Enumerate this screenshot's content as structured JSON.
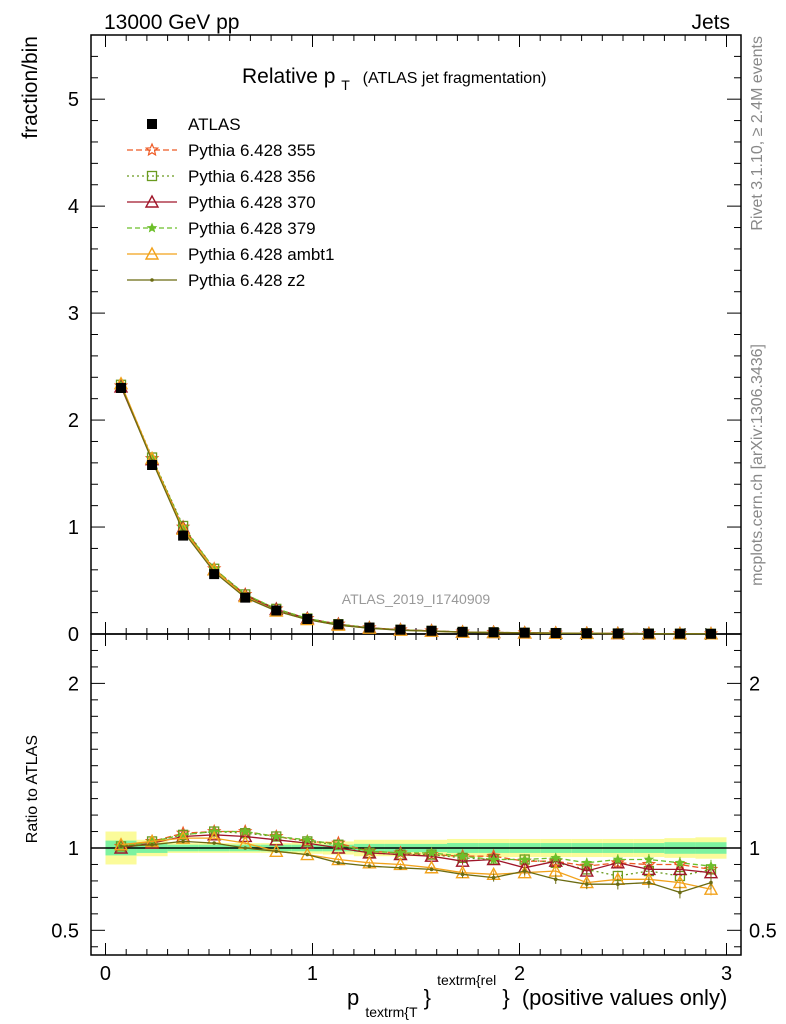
{
  "header": {
    "left": "13000 GeV pp",
    "right": "Jets"
  },
  "title": {
    "main": "Relative p",
    "sub": "T",
    "suffix": "(ATLAS jet fragmentation)"
  },
  "side_labels": {
    "rivet": "Rivet 3.1.10, ≥ 2.4M events",
    "mcplots": "mcplots.cern.ch [arXiv:1306.3436]"
  },
  "analysis_label": "ATLAS_2019_I1740909",
  "y_label_main": "fraction/bin",
  "y_label_ratio": "Ratio to ATLAS",
  "x_label": {
    "p": "p",
    "sub": "textrm{T",
    "brace1": "}",
    "sup": "textrm{rel",
    "brace2": "}",
    "tail": "(positive values only)"
  },
  "colors": {
    "ATLAS": "#000000",
    "p355": "#ee5a24",
    "p356": "#6a9a1f",
    "p370": "#a0162a",
    "p379": "#6cbf2a",
    "ambt1": "#f2a21b",
    "z2": "#6b6b12",
    "band_inner": "#7df2a0",
    "band_outer": "#fbfb9a"
  },
  "chart_data": [
    {
      "type": "line",
      "panel": "main",
      "xlim": [
        -0.07,
        3.07
      ],
      "ylim": [
        0,
        5.6
      ],
      "yticks": [
        0,
        1,
        2,
        3,
        4,
        5
      ],
      "ytick_labels": [
        "0",
        "1",
        "2",
        "3",
        "4",
        "5"
      ],
      "x": [
        0.075,
        0.225,
        0.375,
        0.525,
        0.675,
        0.825,
        0.975,
        1.125,
        1.275,
        1.425,
        1.575,
        1.725,
        1.875,
        2.025,
        2.175,
        2.325,
        2.475,
        2.625,
        2.775,
        2.925
      ],
      "series": [
        {
          "name": "ATLAS",
          "key": "ATLAS",
          "marker": "square",
          "dash": "none",
          "values": [
            2.3,
            1.58,
            0.92,
            0.56,
            0.34,
            0.22,
            0.14,
            0.09,
            0.06,
            0.04,
            0.03,
            0.02,
            0.016,
            0.012,
            0.009,
            0.007,
            0.005,
            0.004,
            0.003,
            0.002
          ]
        },
        {
          "name": "Pythia 6.428 355",
          "key": "p355",
          "marker": "star",
          "dash": "6,3",
          "values": [
            2.32,
            1.64,
            1.0,
            0.61,
            0.37,
            0.235,
            0.145,
            0.093,
            0.058,
            0.039,
            0.029,
            0.019,
            0.015,
            0.011,
            0.0085,
            0.0063,
            0.0046,
            0.0036,
            0.0027,
            0.0017
          ]
        },
        {
          "name": "Pythia 6.428 356",
          "key": "p356",
          "marker": "square-open",
          "dash": "2,3",
          "values": [
            2.33,
            1.65,
            1.01,
            0.61,
            0.37,
            0.235,
            0.145,
            0.092,
            0.058,
            0.039,
            0.029,
            0.019,
            0.015,
            0.011,
            0.0083,
            0.006,
            0.0042,
            0.0035,
            0.0025,
            0.0018
          ]
        },
        {
          "name": "Pythia 6.428 370",
          "key": "p370",
          "marker": "triangle-open",
          "dash": "none",
          "values": [
            2.31,
            1.63,
            0.99,
            0.6,
            0.36,
            0.23,
            0.145,
            0.089,
            0.058,
            0.039,
            0.029,
            0.018,
            0.015,
            0.0105,
            0.0082,
            0.006,
            0.0045,
            0.0035,
            0.0026,
            0.0017
          ]
        },
        {
          "name": "Pythia 6.428 379",
          "key": "p379",
          "marker": "star-small",
          "dash": "5,3",
          "values": [
            2.32,
            1.64,
            1.0,
            0.61,
            0.37,
            0.235,
            0.146,
            0.092,
            0.058,
            0.039,
            0.029,
            0.019,
            0.015,
            0.011,
            0.0084,
            0.0063,
            0.0046,
            0.0037,
            0.0026,
            0.0018
          ]
        },
        {
          "name": "Pythia 6.428 ambt1",
          "key": "ambt1",
          "marker": "triangle-open",
          "dash": "none",
          "values": [
            2.34,
            1.64,
            0.98,
            0.6,
            0.35,
            0.215,
            0.135,
            0.083,
            0.054,
            0.036,
            0.026,
            0.017,
            0.013,
            0.01,
            0.0077,
            0.0055,
            0.004,
            0.0032,
            0.0023,
            0.0015
          ]
        },
        {
          "name": "Pythia 6.428 z2",
          "key": "z2",
          "marker": "dot",
          "dash": "none",
          "values": [
            2.32,
            1.62,
            0.96,
            0.58,
            0.34,
            0.215,
            0.135,
            0.082,
            0.054,
            0.035,
            0.026,
            0.017,
            0.013,
            0.01,
            0.0073,
            0.0055,
            0.0039,
            0.0032,
            0.0022,
            0.0016
          ]
        }
      ]
    },
    {
      "type": "line",
      "panel": "ratio",
      "xlim": [
        -0.07,
        3.07
      ],
      "ylim": [
        0.35,
        2.3
      ],
      "yticks": [
        0.5,
        1,
        2
      ],
      "ytick_labels": [
        "0.5",
        "1",
        "2"
      ],
      "xticks": [
        0,
        1,
        2,
        3
      ],
      "xtick_labels": [
        "0",
        "1",
        "2",
        "3"
      ],
      "x": [
        0.075,
        0.225,
        0.375,
        0.525,
        0.675,
        0.825,
        0.975,
        1.125,
        1.275,
        1.425,
        1.575,
        1.725,
        1.875,
        2.025,
        2.175,
        2.325,
        2.475,
        2.625,
        2.775,
        2.925
      ],
      "bands": {
        "inner": [
          0.045,
          0.03,
          0.02,
          0.02,
          0.02,
          0.02,
          0.02,
          0.02,
          0.025,
          0.025,
          0.025,
          0.03,
          0.03,
          0.03,
          0.03,
          0.03,
          0.03,
          0.03,
          0.035,
          0.035
        ],
        "outer": [
          0.1,
          0.05,
          0.03,
          0.03,
          0.03,
          0.03,
          0.035,
          0.04,
          0.05,
          0.05,
          0.05,
          0.055,
          0.055,
          0.055,
          0.055,
          0.055,
          0.055,
          0.055,
          0.06,
          0.065
        ]
      },
      "series": [
        {
          "key": "p355",
          "marker": "star",
          "dash": "6,3",
          "values": [
            1.01,
            1.04,
            1.09,
            1.1,
            1.1,
            1.07,
            1.04,
            1.03,
            0.98,
            0.97,
            0.96,
            0.95,
            0.95,
            0.92,
            0.92,
            0.89,
            0.91,
            0.9,
            0.9,
            0.87
          ]
        },
        {
          "key": "p356",
          "marker": "square-open",
          "dash": "2,3",
          "values": [
            1.01,
            1.04,
            1.08,
            1.1,
            1.09,
            1.07,
            1.04,
            1.02,
            0.97,
            0.96,
            0.96,
            0.94,
            0.93,
            0.93,
            0.91,
            0.87,
            0.83,
            0.86,
            0.83,
            0.87
          ]
        },
        {
          "key": "p370",
          "marker": "triangle-open",
          "dash": "none",
          "values": [
            1.0,
            1.03,
            1.07,
            1.08,
            1.07,
            1.05,
            1.03,
            1.0,
            0.97,
            0.96,
            0.95,
            0.92,
            0.93,
            0.88,
            0.92,
            0.86,
            0.91,
            0.87,
            0.87,
            0.85
          ]
        },
        {
          "key": "p379",
          "marker": "star-small",
          "dash": "5,3",
          "values": [
            1.01,
            1.04,
            1.08,
            1.1,
            1.1,
            1.07,
            1.05,
            1.02,
            0.98,
            0.97,
            0.97,
            0.95,
            0.93,
            0.93,
            0.94,
            0.91,
            0.93,
            0.93,
            0.91,
            0.89
          ]
        },
        {
          "key": "ambt1",
          "marker": "triangle-open",
          "dash": "none",
          "values": [
            1.02,
            1.04,
            1.06,
            1.06,
            1.03,
            0.98,
            0.96,
            0.93,
            0.91,
            0.9,
            0.88,
            0.85,
            0.84,
            0.85,
            0.86,
            0.79,
            0.81,
            0.81,
            0.79,
            0.75
          ]
        },
        {
          "key": "z2",
          "marker": "dot",
          "dash": "none",
          "values": [
            1.01,
            1.02,
            1.04,
            1.03,
            1.0,
            0.98,
            0.96,
            0.91,
            0.89,
            0.88,
            0.87,
            0.84,
            0.82,
            0.86,
            0.81,
            0.78,
            0.78,
            0.79,
            0.73,
            0.79
          ]
        }
      ]
    }
  ]
}
